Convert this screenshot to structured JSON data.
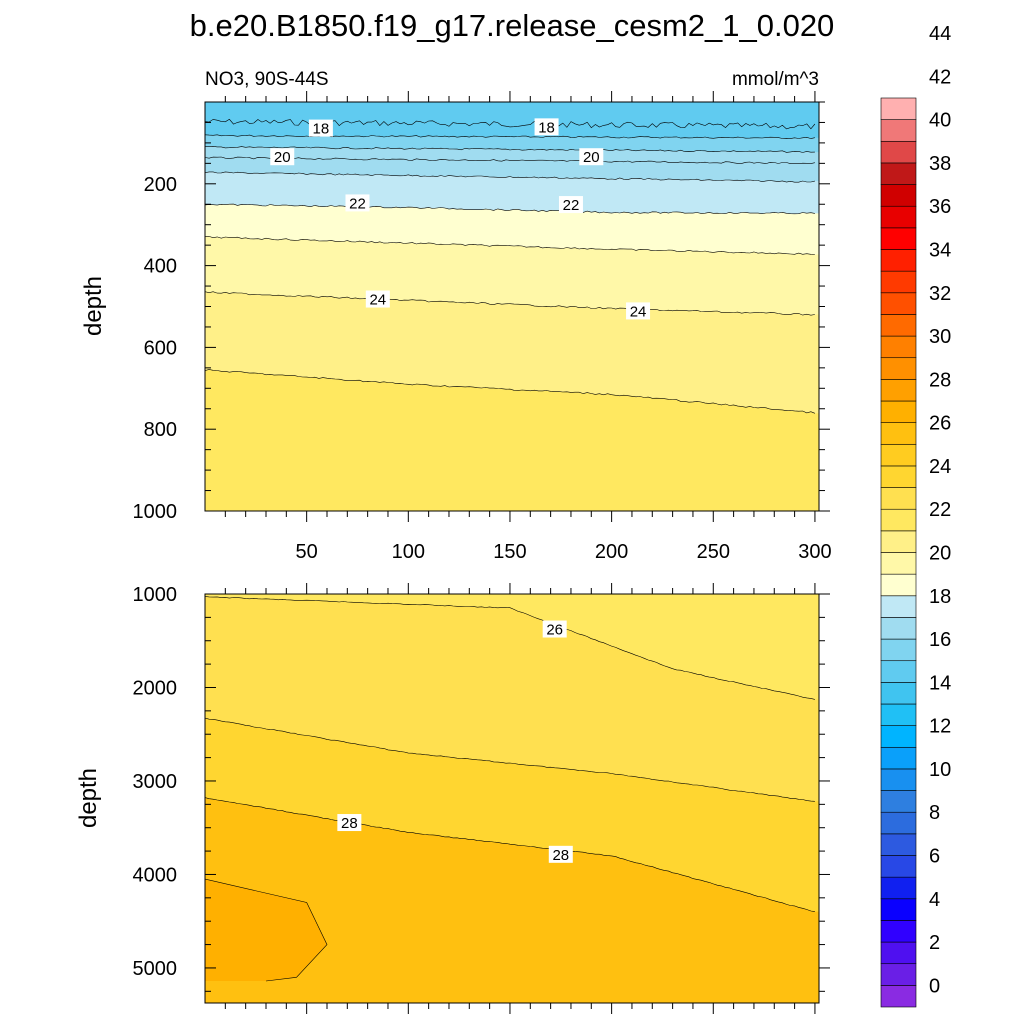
{
  "figure_title": "b.e20.B1850.f19_g17.release_cesm2_1_0.020",
  "chart_data": [
    {
      "type": "contour",
      "panel": "upper",
      "left_label": "NO3, 90S-44S",
      "units_label": "mmol/m^3",
      "ylabel": "depth",
      "xlabel": "",
      "xlim": [
        0,
        302
      ],
      "ylim": [
        1000,
        0
      ],
      "x_ticks": [
        50,
        100,
        150,
        200,
        250,
        300
      ],
      "y_ticks": [
        200,
        400,
        600,
        800,
        1000
      ],
      "contours": [
        {
          "level": 17,
          "x": [
            0,
            300
          ],
          "depth": [
            48,
            60
          ]
        },
        {
          "level": 18,
          "x": [
            0,
            300
          ],
          "depth": [
            82,
            88
          ]
        },
        {
          "level": 19,
          "x": [
            0,
            300
          ],
          "depth": [
            110,
            122
          ]
        },
        {
          "level": 20,
          "x": [
            0,
            300
          ],
          "depth": [
            136,
            150
          ]
        },
        {
          "level": 21,
          "x": [
            0,
            300
          ],
          "depth": [
            172,
            195
          ]
        },
        {
          "level": 22,
          "x": [
            0,
            100,
            200,
            300
          ],
          "depth": [
            250,
            258,
            270,
            272
          ]
        },
        {
          "level": 23,
          "x": [
            0,
            100,
            200,
            300
          ],
          "depth": [
            330,
            345,
            360,
            372
          ]
        },
        {
          "level": 24,
          "x": [
            0,
            100,
            200,
            300
          ],
          "depth": [
            465,
            485,
            505,
            520
          ]
        },
        {
          "level": 25,
          "x": [
            0,
            100,
            200,
            300
          ],
          "depth": [
            655,
            690,
            715,
            760
          ]
        }
      ],
      "contour_labels": [
        {
          "text": "18",
          "x": 57,
          "depth": 65
        },
        {
          "text": "18",
          "x": 168,
          "depth": 62
        },
        {
          "text": "20",
          "x": 38,
          "depth": 135
        },
        {
          "text": "20",
          "x": 190,
          "depth": 135
        },
        {
          "text": "22",
          "x": 75,
          "depth": 248
        },
        {
          "text": "22",
          "x": 180,
          "depth": 252
        },
        {
          "text": "24",
          "x": 85,
          "depth": 483
        },
        {
          "text": "24",
          "x": 213,
          "depth": 512
        }
      ]
    },
    {
      "type": "contour",
      "panel": "lower",
      "ylabel": "depth",
      "xlabel": "",
      "xlim": [
        0,
        302
      ],
      "ylim": [
        5375,
        1000
      ],
      "x_ticks": [
        50,
        100,
        150,
        200,
        250,
        300
      ],
      "y_ticks": [
        1000,
        2000,
        3000,
        4000,
        5000
      ],
      "contours": [
        {
          "level": 26,
          "x": [
            0,
            150,
            230,
            300
          ],
          "depth": [
            1030,
            1150,
            1800,
            2130
          ]
        },
        {
          "level": 27,
          "x": [
            0,
            100,
            200,
            300
          ],
          "depth": [
            2330,
            2700,
            2920,
            3220
          ]
        },
        {
          "level": 28,
          "x": [
            0,
            100,
            200,
            300
          ],
          "depth": [
            3180,
            3550,
            3800,
            4400
          ]
        },
        {
          "level": 29,
          "x": [
            0,
            50,
            60,
            45,
            30
          ],
          "depth": [
            4050,
            4300,
            4750,
            5100,
            5140
          ]
        }
      ],
      "contour_labels": [
        {
          "text": "26",
          "x": 172,
          "depth": 1380
        },
        {
          "text": "28",
          "x": 71,
          "depth": 3450
        },
        {
          "text": "28",
          "x": 175,
          "depth": 3790
        }
      ]
    }
  ],
  "colorbar": {
    "labels": [
      "0",
      "2",
      "4",
      "6",
      "8",
      "10",
      "12",
      "14",
      "16",
      "18",
      "20",
      "22",
      "24",
      "26",
      "28",
      "30",
      "32",
      "34",
      "36",
      "38",
      "40",
      "42",
      "44"
    ],
    "colors": [
      "#8a2be2",
      "#6a1fe6",
      "#4f10f0",
      "#3000ff",
      "#0a00ff",
      "#1020f0",
      "#2848e6",
      "#2d5ae0",
      "#2c6cde",
      "#2e7fe0",
      "#1890f0",
      "#0aa0fa",
      "#00b4ff",
      "#20c0f5",
      "#40c4f0",
      "#60cbf0",
      "#80d4f0",
      "#a0dcf0",
      "#c0e8f5",
      "#ffffd0",
      "#fff8a8",
      "#fff088",
      "#ffe860",
      "#ffe050",
      "#ffd630",
      "#ffcc20",
      "#ffc010",
      "#ffb000",
      "#ffa000",
      "#ff9000",
      "#ff8000",
      "#ff6a00",
      "#ff5000",
      "#ff3a00",
      "#ff2000",
      "#ff0000",
      "#e80000",
      "#d00000",
      "#c01818",
      "#e04848",
      "#f07878",
      "#ffb0b0"
    ]
  },
  "colors": {
    "background": "#ffffff",
    "contour_line": "#000000"
  }
}
